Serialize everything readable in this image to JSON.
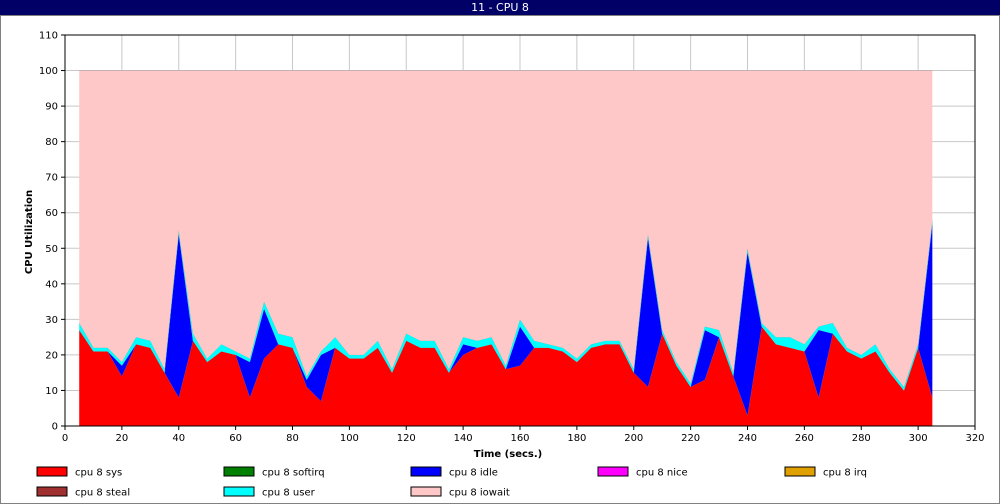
{
  "window": {
    "title": "11 - CPU 8"
  },
  "chart_data": {
    "type": "area",
    "stacked": true,
    "xlabel": "Time (secs.)",
    "ylabel": "CPU Utilization",
    "xlim": [
      0,
      320
    ],
    "ylim": [
      0,
      110
    ],
    "xticks": [
      0,
      20,
      40,
      60,
      80,
      100,
      120,
      140,
      160,
      180,
      200,
      220,
      240,
      260,
      280,
      300,
      320
    ],
    "yticks": [
      0,
      10,
      20,
      30,
      40,
      50,
      60,
      70,
      80,
      90,
      100,
      110
    ],
    "grid": true,
    "legend_position": "bottom",
    "x": [
      5,
      10,
      15,
      20,
      25,
      30,
      35,
      40,
      45,
      50,
      55,
      60,
      65,
      70,
      75,
      80,
      85,
      90,
      95,
      100,
      105,
      110,
      115,
      120,
      125,
      130,
      135,
      140,
      145,
      150,
      155,
      160,
      165,
      170,
      175,
      180,
      185,
      190,
      195,
      200,
      205,
      210,
      215,
      220,
      225,
      230,
      235,
      240,
      245,
      250,
      255,
      260,
      265,
      270,
      275,
      280,
      285,
      290,
      295,
      300,
      305
    ],
    "series": [
      {
        "name": "cpu 8 sys",
        "color": "#ff0000",
        "values": [
          27,
          21,
          21,
          14,
          23,
          22,
          15,
          8,
          24,
          18,
          21,
          20,
          8,
          19,
          23,
          22,
          11,
          7,
          22,
          19,
          19,
          22,
          15,
          24,
          22,
          22,
          15,
          20,
          22,
          23,
          16,
          17,
          22,
          22,
          21,
          18,
          22,
          23,
          23,
          15,
          11,
          26,
          17,
          11,
          13,
          25,
          14,
          3,
          28,
          23,
          22,
          21,
          8,
          26,
          21,
          19,
          21,
          15,
          10,
          22,
          8
        ]
      },
      {
        "name": "cpu 8 softirq",
        "color": "#008000",
        "values": [
          0,
          0,
          0,
          0,
          0,
          0,
          0,
          0,
          0,
          0,
          0,
          0,
          0,
          0,
          0,
          0,
          0,
          0,
          0,
          0,
          0,
          0,
          0,
          0,
          0,
          0,
          0,
          0,
          0,
          0,
          0,
          0,
          0,
          0,
          0,
          0,
          0,
          0,
          0,
          0,
          0,
          0,
          0,
          0,
          0,
          0,
          0,
          0,
          0,
          0,
          0,
          0,
          0,
          0,
          0,
          0,
          0,
          0,
          0,
          0,
          0
        ]
      },
      {
        "name": "cpu 8 idle",
        "color": "#0000ff",
        "values": [
          0,
          0,
          0,
          3,
          0,
          0,
          0,
          46,
          0,
          0,
          0,
          0,
          10,
          14,
          0,
          0,
          2,
          13,
          0,
          0,
          0,
          0,
          0,
          0,
          0,
          0,
          0,
          3,
          0,
          0,
          0,
          11,
          0,
          0,
          0,
          0,
          0,
          0,
          0,
          0,
          42,
          0,
          0,
          0,
          14,
          0,
          0,
          46,
          0,
          0,
          0,
          0,
          19,
          0,
          0,
          0,
          0,
          0,
          0,
          0,
          49
        ]
      },
      {
        "name": "cpu 8 nice",
        "color": "#ff00ff",
        "values": [
          0,
          0,
          0,
          0,
          0,
          0,
          0,
          0,
          0,
          0,
          0,
          0,
          0,
          0,
          0,
          0,
          0,
          0,
          0,
          0,
          0,
          0,
          0,
          0,
          0,
          0,
          0,
          0,
          0,
          0,
          0,
          0,
          0,
          0,
          0,
          0,
          0,
          0,
          0,
          0,
          0,
          0,
          0,
          0,
          0,
          0,
          0,
          0,
          0,
          0,
          0,
          0,
          0,
          0,
          0,
          0,
          0,
          0,
          0,
          0,
          0
        ]
      },
      {
        "name": "cpu 8 irq",
        "color": "#e0a000",
        "values": [
          0,
          0,
          0,
          0,
          0,
          0,
          0,
          0,
          0,
          0,
          0,
          0,
          0,
          0,
          0,
          0,
          0,
          0,
          0,
          0,
          0,
          0,
          0,
          0,
          0,
          0,
          0,
          0,
          0,
          0,
          0,
          0,
          0,
          0,
          0,
          0,
          0,
          0,
          0,
          0,
          0,
          0,
          0,
          0,
          0,
          0,
          0,
          0,
          0,
          0,
          0,
          0,
          0,
          0,
          0,
          0,
          0,
          0,
          0,
          0,
          0
        ]
      },
      {
        "name": "cpu 8 steal",
        "color": "#a03030",
        "values": [
          0,
          0,
          0,
          0,
          0,
          0,
          0,
          0,
          0,
          0,
          0,
          0,
          0,
          0,
          0,
          0,
          0,
          0,
          0,
          0,
          0,
          0,
          0,
          0,
          0,
          0,
          0,
          0,
          0,
          0,
          0,
          0,
          0,
          0,
          0,
          0,
          0,
          0,
          0,
          0,
          0,
          0,
          0,
          0,
          0,
          0,
          0,
          0,
          0,
          0,
          0,
          0,
          0,
          0,
          0,
          0,
          0,
          0,
          0,
          0,
          0
        ]
      },
      {
        "name": "cpu 8 user",
        "color": "#00ffff",
        "values": [
          2,
          1,
          1,
          1,
          2,
          2,
          1,
          1,
          2,
          1,
          2,
          1,
          1,
          2,
          3,
          3,
          1,
          1,
          3,
          1,
          1,
          2,
          1,
          2,
          2,
          2,
          1,
          2,
          2,
          2,
          1,
          2,
          2,
          1,
          1,
          1,
          1,
          1,
          1,
          1,
          1,
          1,
          1,
          1,
          1,
          2,
          1,
          1,
          1,
          2,
          3,
          2,
          1,
          3,
          1,
          1,
          2,
          1,
          1,
          1,
          1
        ]
      },
      {
        "name": "cpu 8 iowait",
        "color": "#ffc8c8",
        "values": [
          71,
          78,
          78,
          82,
          75,
          76,
          84,
          45,
          74,
          81,
          77,
          79,
          81,
          65,
          74,
          75,
          86,
          79,
          75,
          80,
          80,
          76,
          84,
          74,
          76,
          76,
          84,
          75,
          76,
          75,
          83,
          70,
          76,
          77,
          78,
          81,
          77,
          76,
          76,
          84,
          46,
          73,
          82,
          88,
          72,
          73,
          85,
          50,
          71,
          75,
          75,
          77,
          72,
          71,
          78,
          80,
          77,
          84,
          89,
          77,
          42
        ]
      }
    ]
  }
}
